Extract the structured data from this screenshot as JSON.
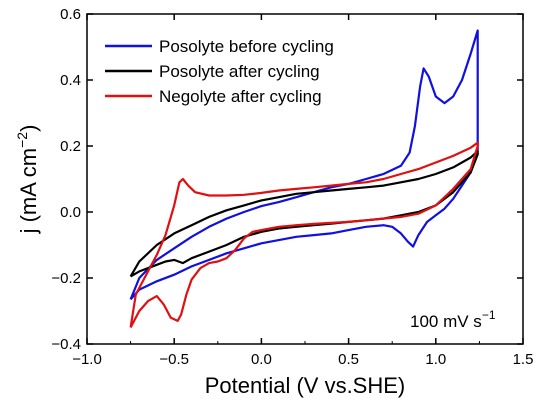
{
  "chart_data": {
    "type": "line",
    "xlabel": "Potential (V vs.SHE)",
    "ylabel_main": "j (mA cm",
    "ylabel_exp": "−2",
    "ylabel_close": ")",
    "xlim": [
      -1.0,
      1.5
    ],
    "ylim": [
      -0.4,
      0.6
    ],
    "x_ticks": [
      -1.0,
      -0.5,
      0.0,
      0.5,
      1.0,
      1.5
    ],
    "x_tick_labels": [
      "−1.0",
      "−0.5",
      "0.0",
      "0.5",
      "1.0",
      "1.5"
    ],
    "y_ticks": [
      -0.4,
      -0.2,
      0.0,
      0.2,
      0.4,
      0.6
    ],
    "y_tick_labels": [
      "−0.4",
      "−0.2",
      "0.0",
      "0.2",
      "0.4",
      "0.6"
    ],
    "grid": false,
    "legend_position": "top-left",
    "annotation_main": "100 mV s",
    "annotation_exp": "−1",
    "series": [
      {
        "name": "Posolyte before cycling",
        "color": "#1010e0",
        "points": [
          [
            -0.75,
            -0.265
          ],
          [
            -0.7,
            -0.2
          ],
          [
            -0.6,
            -0.145
          ],
          [
            -0.5,
            -0.11
          ],
          [
            -0.4,
            -0.075
          ],
          [
            -0.3,
            -0.045
          ],
          [
            -0.2,
            -0.02
          ],
          [
            -0.1,
            0.0
          ],
          [
            0.0,
            0.018
          ],
          [
            0.1,
            0.03
          ],
          [
            0.2,
            0.045
          ],
          [
            0.3,
            0.06
          ],
          [
            0.4,
            0.075
          ],
          [
            0.5,
            0.085
          ],
          [
            0.6,
            0.1
          ],
          [
            0.7,
            0.115
          ],
          [
            0.8,
            0.14
          ],
          [
            0.85,
            0.18
          ],
          [
            0.88,
            0.26
          ],
          [
            0.91,
            0.38
          ],
          [
            0.93,
            0.435
          ],
          [
            0.96,
            0.41
          ],
          [
            1.0,
            0.35
          ],
          [
            1.05,
            0.33
          ],
          [
            1.1,
            0.35
          ],
          [
            1.15,
            0.4
          ],
          [
            1.2,
            0.48
          ],
          [
            1.24,
            0.55
          ],
          [
            1.24,
            0.19
          ],
          [
            1.2,
            0.12
          ],
          [
            1.1,
            0.04
          ],
          [
            1.05,
            0.01
          ],
          [
            1.0,
            -0.01
          ],
          [
            0.95,
            -0.03
          ],
          [
            0.9,
            -0.07
          ],
          [
            0.87,
            -0.105
          ],
          [
            0.84,
            -0.09
          ],
          [
            0.8,
            -0.065
          ],
          [
            0.75,
            -0.045
          ],
          [
            0.7,
            -0.04
          ],
          [
            0.6,
            -0.045
          ],
          [
            0.5,
            -0.055
          ],
          [
            0.4,
            -0.065
          ],
          [
            0.3,
            -0.07
          ],
          [
            0.2,
            -0.075
          ],
          [
            0.1,
            -0.085
          ],
          [
            0.0,
            -0.095
          ],
          [
            -0.1,
            -0.11
          ],
          [
            -0.2,
            -0.125
          ],
          [
            -0.3,
            -0.145
          ],
          [
            -0.4,
            -0.165
          ],
          [
            -0.5,
            -0.19
          ],
          [
            -0.6,
            -0.21
          ],
          [
            -0.7,
            -0.235
          ],
          [
            -0.75,
            -0.265
          ]
        ]
      },
      {
        "name": "Posolyte after cycling",
        "color": "#000000",
        "points": [
          [
            -0.75,
            -0.195
          ],
          [
            -0.7,
            -0.15
          ],
          [
            -0.6,
            -0.1
          ],
          [
            -0.5,
            -0.065
          ],
          [
            -0.4,
            -0.04
          ],
          [
            -0.3,
            -0.015
          ],
          [
            -0.2,
            0.005
          ],
          [
            -0.1,
            0.02
          ],
          [
            0.0,
            0.035
          ],
          [
            0.1,
            0.045
          ],
          [
            0.2,
            0.055
          ],
          [
            0.3,
            0.06
          ],
          [
            0.4,
            0.065
          ],
          [
            0.5,
            0.07
          ],
          [
            0.6,
            0.075
          ],
          [
            0.7,
            0.08
          ],
          [
            0.8,
            0.09
          ],
          [
            0.9,
            0.1
          ],
          [
            1.0,
            0.115
          ],
          [
            1.1,
            0.135
          ],
          [
            1.2,
            0.165
          ],
          [
            1.24,
            0.185
          ],
          [
            1.24,
            0.175
          ],
          [
            1.2,
            0.12
          ],
          [
            1.1,
            0.06
          ],
          [
            1.0,
            0.02
          ],
          [
            0.9,
            0.0
          ],
          [
            0.8,
            -0.01
          ],
          [
            0.7,
            -0.02
          ],
          [
            0.6,
            -0.025
          ],
          [
            0.5,
            -0.03
          ],
          [
            0.4,
            -0.035
          ],
          [
            0.3,
            -0.04
          ],
          [
            0.2,
            -0.045
          ],
          [
            0.1,
            -0.05
          ],
          [
            0.0,
            -0.06
          ],
          [
            -0.1,
            -0.075
          ],
          [
            -0.2,
            -0.1
          ],
          [
            -0.3,
            -0.12
          ],
          [
            -0.4,
            -0.14
          ],
          [
            -0.45,
            -0.155
          ],
          [
            -0.5,
            -0.145
          ],
          [
            -0.55,
            -0.15
          ],
          [
            -0.6,
            -0.16
          ],
          [
            -0.7,
            -0.18
          ],
          [
            -0.75,
            -0.195
          ]
        ]
      },
      {
        "name": "Negolyte after cycling",
        "color": "#e01010",
        "points": [
          [
            -0.75,
            -0.35
          ],
          [
            -0.72,
            -0.25
          ],
          [
            -0.65,
            -0.18
          ],
          [
            -0.6,
            -0.13
          ],
          [
            -0.55,
            -0.07
          ],
          [
            -0.5,
            0.02
          ],
          [
            -0.47,
            0.09
          ],
          [
            -0.45,
            0.1
          ],
          [
            -0.42,
            0.08
          ],
          [
            -0.38,
            0.06
          ],
          [
            -0.3,
            0.05
          ],
          [
            -0.2,
            0.05
          ],
          [
            -0.1,
            0.052
          ],
          [
            0.0,
            0.058
          ],
          [
            0.1,
            0.065
          ],
          [
            0.2,
            0.07
          ],
          [
            0.3,
            0.075
          ],
          [
            0.4,
            0.08
          ],
          [
            0.5,
            0.085
          ],
          [
            0.6,
            0.09
          ],
          [
            0.7,
            0.1
          ],
          [
            0.8,
            0.115
          ],
          [
            0.9,
            0.13
          ],
          [
            1.0,
            0.15
          ],
          [
            1.1,
            0.17
          ],
          [
            1.2,
            0.195
          ],
          [
            1.24,
            0.21
          ],
          [
            1.24,
            0.2
          ],
          [
            1.2,
            0.13
          ],
          [
            1.1,
            0.07
          ],
          [
            1.0,
            0.02
          ],
          [
            0.9,
            -0.005
          ],
          [
            0.8,
            -0.015
          ],
          [
            0.7,
            -0.02
          ],
          [
            0.6,
            -0.025
          ],
          [
            0.5,
            -0.03
          ],
          [
            0.4,
            -0.033
          ],
          [
            0.3,
            -0.036
          ],
          [
            0.2,
            -0.04
          ],
          [
            0.1,
            -0.045
          ],
          [
            0.0,
            -0.055
          ],
          [
            -0.05,
            -0.06
          ],
          [
            -0.1,
            -0.08
          ],
          [
            -0.15,
            -0.115
          ],
          [
            -0.2,
            -0.14
          ],
          [
            -0.25,
            -0.15
          ],
          [
            -0.3,
            -0.155
          ],
          [
            -0.35,
            -0.17
          ],
          [
            -0.4,
            -0.205
          ],
          [
            -0.43,
            -0.25
          ],
          [
            -0.46,
            -0.31
          ],
          [
            -0.48,
            -0.33
          ],
          [
            -0.52,
            -0.32
          ],
          [
            -0.56,
            -0.28
          ],
          [
            -0.6,
            -0.255
          ],
          [
            -0.65,
            -0.27
          ],
          [
            -0.7,
            -0.3
          ],
          [
            -0.75,
            -0.35
          ]
        ]
      }
    ]
  }
}
